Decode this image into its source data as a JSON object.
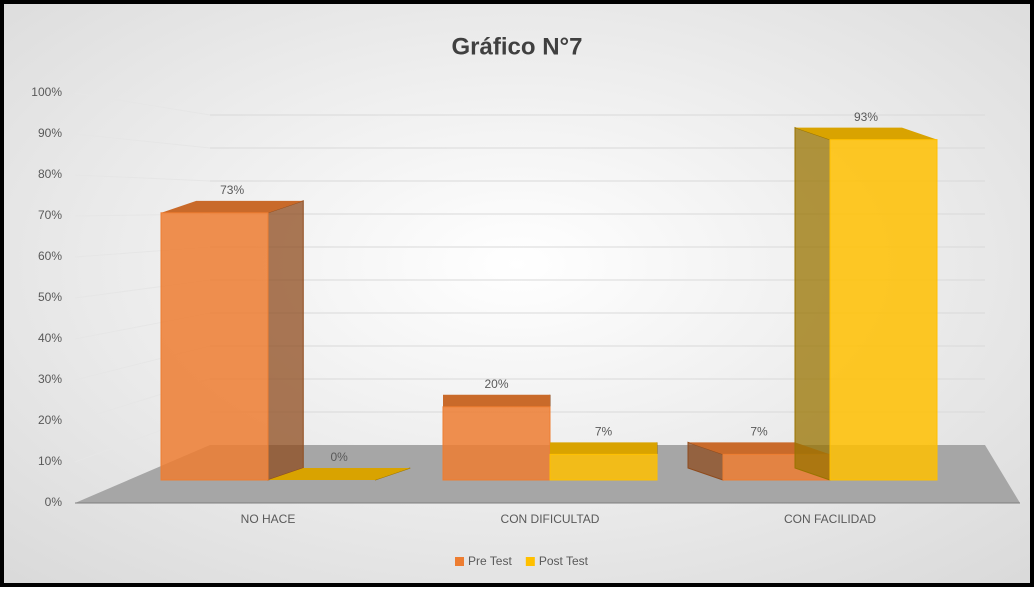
{
  "chart_data": {
    "type": "bar3d",
    "title": "Gráfico N°7",
    "categories": [
      "NO HACE",
      "CON DIFICULTAD",
      "CON FACILIDAD"
    ],
    "series": [
      {
        "name": "Pre Test",
        "color": "#ED7D31",
        "values": [
          73,
          20,
          7
        ],
        "value_labels": [
          "73%",
          "20%",
          "7%"
        ]
      },
      {
        "name": "Post Test",
        "color": "#FFC000",
        "values": [
          0,
          7,
          93
        ],
        "value_labels": [
          "0%",
          "7%",
          "93%"
        ]
      }
    ],
    "ylim": [
      0,
      100
    ],
    "yticks": [
      {
        "value": 0,
        "label": "0%"
      },
      {
        "value": 10,
        "label": "10%"
      },
      {
        "value": 20,
        "label": "20%"
      },
      {
        "value": 30,
        "label": "30%"
      },
      {
        "value": 40,
        "label": "40%"
      },
      {
        "value": 50,
        "label": "50%"
      },
      {
        "value": 60,
        "label": "60%"
      },
      {
        "value": 70,
        "label": "70%"
      },
      {
        "value": 80,
        "label": "80%"
      },
      {
        "value": 90,
        "label": "90%"
      },
      {
        "value": 100,
        "label": "100%"
      }
    ],
    "grid": true,
    "legend": "bottom"
  }
}
